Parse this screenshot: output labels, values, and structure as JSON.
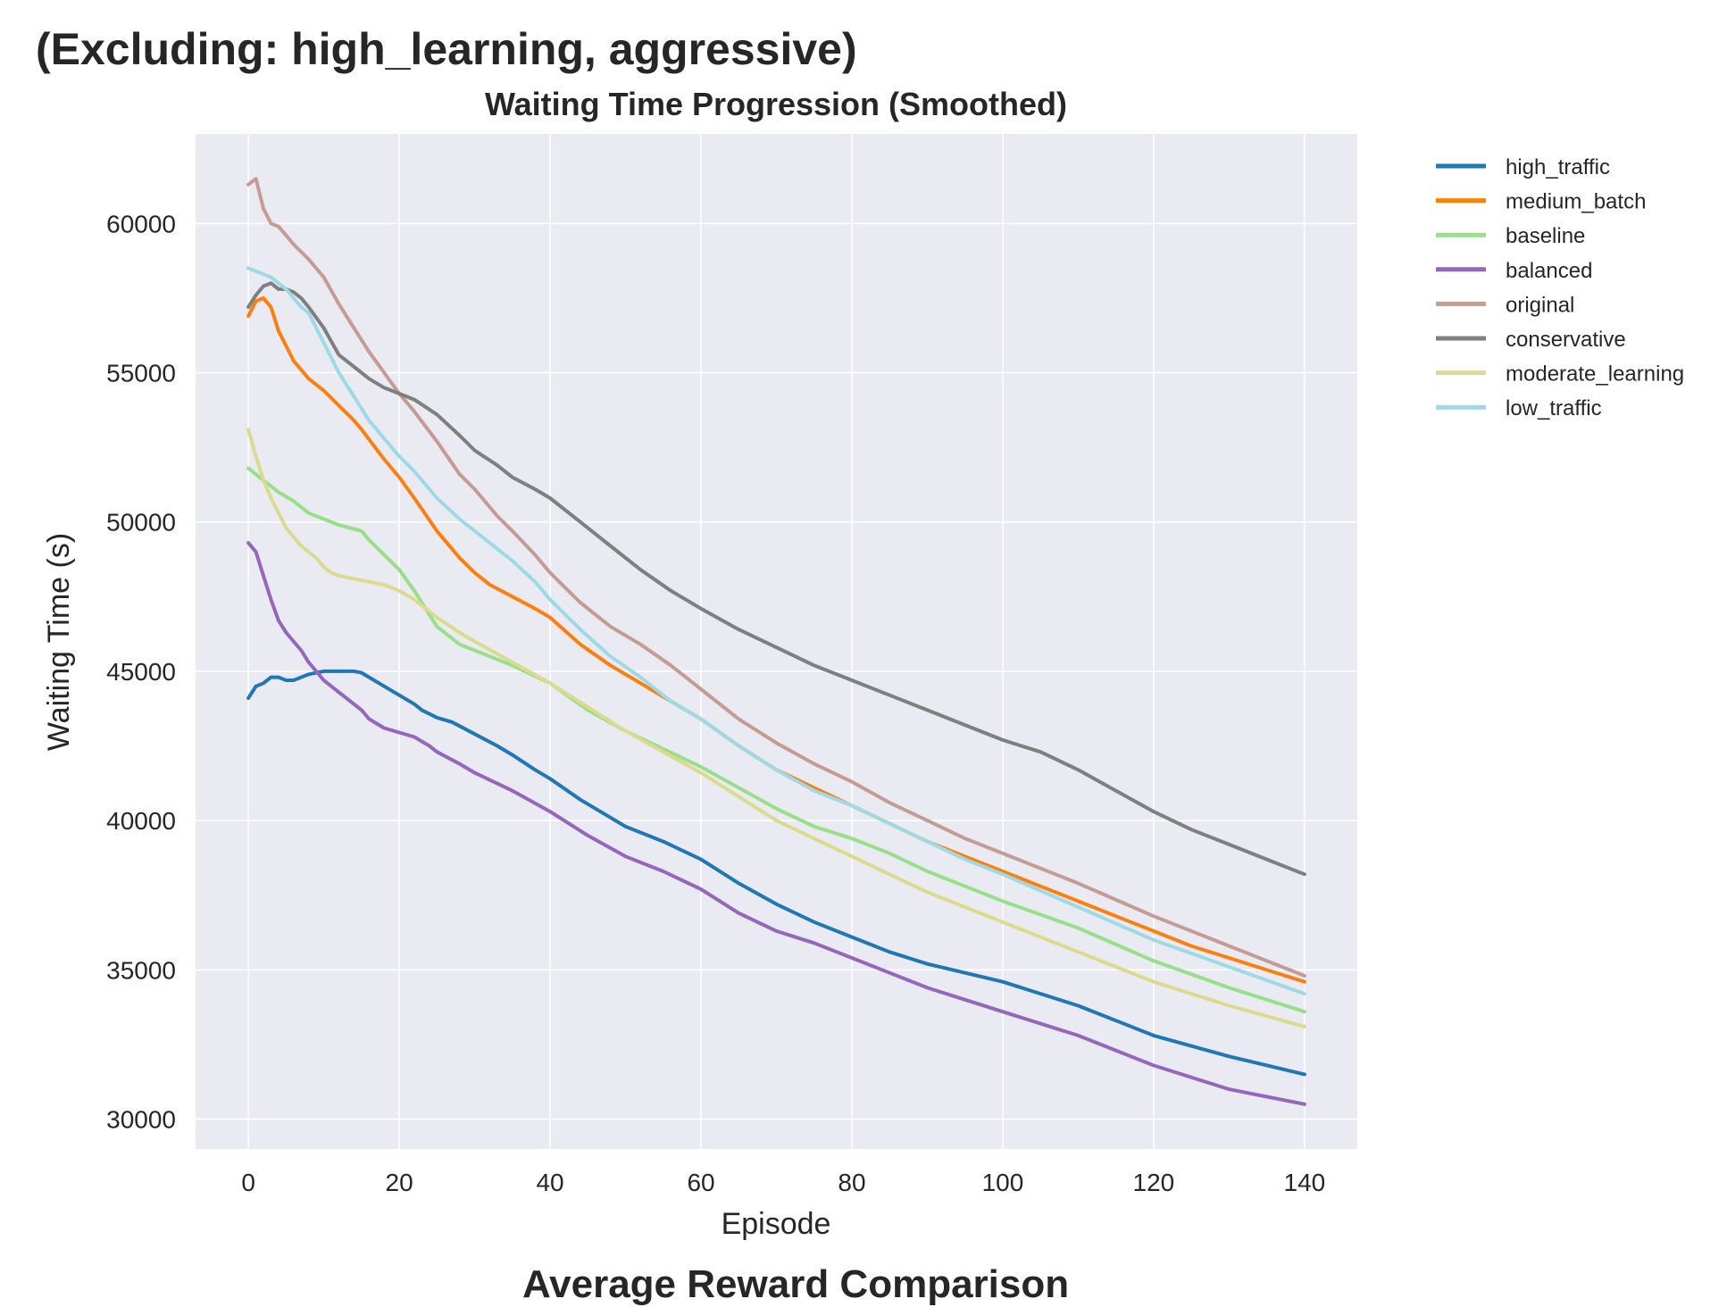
{
  "figure": {
    "suptitle": "(Excluding: high_learning, aggressive)",
    "cut_title": "Average Reward Comparison"
  },
  "chart_data": {
    "type": "line",
    "title": "Waiting Time Progression (Smoothed)",
    "xlabel": "Episode",
    "ylabel": "Waiting Time (s)",
    "xlim": [
      -7,
      147
    ],
    "ylim": [
      29000,
      63000
    ],
    "xticks": [
      0,
      20,
      40,
      60,
      80,
      100,
      120,
      140
    ],
    "yticks": [
      30000,
      35000,
      40000,
      45000,
      50000,
      55000,
      60000
    ],
    "grid": true,
    "legend_position": "outside-upper-right",
    "series": [
      {
        "name": "high_traffic",
        "color": "#1f77b4",
        "x": [
          0,
          1,
          2,
          3,
          4,
          5,
          6,
          7,
          8,
          9,
          10,
          12,
          14,
          15,
          16,
          18,
          20,
          22,
          23,
          25,
          27,
          30,
          33,
          35,
          38,
          40,
          44,
          50,
          55,
          60,
          65,
          70,
          75,
          80,
          85,
          90,
          95,
          100,
          105,
          110,
          115,
          120,
          130,
          140
        ],
        "y": [
          44100,
          44500,
          44600,
          44800,
          44800,
          44700,
          44700,
          44800,
          44900,
          44950,
          45000,
          45000,
          45000,
          44950,
          44800,
          44500,
          44200,
          43900,
          43700,
          43450,
          43300,
          42900,
          42500,
          42200,
          41700,
          41400,
          40700,
          39800,
          39300,
          38700,
          37900,
          37200,
          36600,
          36100,
          35600,
          35200,
          34900,
          34600,
          34200,
          33800,
          33300,
          32800,
          32100,
          31500
        ]
      },
      {
        "name": "medium_batch",
        "color": "#ff7f0e",
        "x": [
          0,
          1,
          2,
          3,
          4,
          5,
          6,
          8,
          10,
          12,
          14,
          15,
          18,
          20,
          22,
          25,
          28,
          30,
          32,
          35,
          38,
          40,
          44,
          48,
          52,
          56,
          60,
          65,
          70,
          75,
          80,
          85,
          90,
          95,
          100,
          105,
          110,
          115,
          120,
          125,
          130,
          135,
          140
        ],
        "y": [
          56900,
          57400,
          57500,
          57200,
          56400,
          55900,
          55400,
          54800,
          54400,
          53900,
          53400,
          53100,
          52100,
          51500,
          50800,
          49700,
          48800,
          48300,
          47900,
          47500,
          47100,
          46800,
          45900,
          45200,
          44600,
          44000,
          43400,
          42500,
          41700,
          41100,
          40500,
          39900,
          39300,
          38800,
          38300,
          37800,
          37300,
          36800,
          36300,
          35800,
          35400,
          35000,
          34600
        ]
      },
      {
        "name": "baseline",
        "color": "#98df8a",
        "x": [
          0,
          2,
          4,
          6,
          8,
          10,
          12,
          15,
          16,
          18,
          20,
          22,
          25,
          28,
          30,
          35,
          40,
          45,
          50,
          55,
          60,
          65,
          70,
          75,
          80,
          85,
          90,
          95,
          100,
          110,
          120,
          130,
          140
        ],
        "y": [
          51800,
          51400,
          51000,
          50700,
          50300,
          50100,
          49900,
          49700,
          49400,
          48900,
          48400,
          47700,
          46500,
          45900,
          45700,
          45200,
          44600,
          43700,
          43000,
          42400,
          41800,
          41100,
          40400,
          39800,
          39400,
          38900,
          38300,
          37800,
          37300,
          36400,
          35300,
          34400,
          33600
        ]
      },
      {
        "name": "balanced",
        "color": "#9467bd",
        "x": [
          0,
          1,
          2,
          3,
          4,
          5,
          6,
          7,
          8,
          10,
          12,
          14,
          15,
          16,
          18,
          20,
          22,
          24,
          25,
          28,
          30,
          35,
          40,
          45,
          50,
          55,
          60,
          65,
          70,
          75,
          80,
          85,
          90,
          95,
          100,
          110,
          120,
          130,
          140
        ],
        "y": [
          49300,
          49000,
          48200,
          47400,
          46700,
          46300,
          46000,
          45700,
          45300,
          44700,
          44300,
          43900,
          43700,
          43400,
          43100,
          42950,
          42800,
          42500,
          42300,
          41900,
          41600,
          41000,
          40300,
          39500,
          38800,
          38300,
          37700,
          36900,
          36300,
          35900,
          35400,
          34900,
          34400,
          34000,
          33600,
          32800,
          31800,
          31000,
          30500
        ]
      },
      {
        "name": "original",
        "color": "#c49c94",
        "x": [
          0,
          1,
          2,
          3,
          4,
          5,
          6,
          8,
          10,
          12,
          14,
          16,
          18,
          20,
          22,
          25,
          28,
          30,
          33,
          35,
          38,
          40,
          44,
          48,
          52,
          56,
          60,
          65,
          70,
          75,
          80,
          85,
          90,
          95,
          100,
          110,
          120,
          130,
          140
        ],
        "y": [
          61300,
          61500,
          60500,
          60000,
          59900,
          59600,
          59300,
          58800,
          58200,
          57300,
          56500,
          55700,
          55000,
          54300,
          53700,
          52700,
          51600,
          51100,
          50200,
          49700,
          48900,
          48300,
          47300,
          46500,
          45900,
          45200,
          44400,
          43400,
          42600,
          41900,
          41300,
          40600,
          40000,
          39400,
          38900,
          37900,
          36800,
          35800,
          34800
        ]
      },
      {
        "name": "conservative",
        "color": "#7f7f7f",
        "x": [
          0,
          1,
          2,
          3,
          4,
          5,
          6,
          7,
          8,
          10,
          12,
          14,
          16,
          18,
          20,
          22,
          25,
          28,
          30,
          33,
          35,
          38,
          40,
          44,
          48,
          52,
          56,
          60,
          65,
          70,
          75,
          80,
          85,
          90,
          95,
          100,
          105,
          110,
          115,
          120,
          125,
          130,
          135,
          140
        ],
        "y": [
          57200,
          57600,
          57900,
          58000,
          57800,
          57800,
          57700,
          57500,
          57200,
          56500,
          55600,
          55200,
          54800,
          54500,
          54300,
          54100,
          53600,
          52900,
          52400,
          51900,
          51500,
          51100,
          50800,
          50000,
          49200,
          48400,
          47700,
          47100,
          46400,
          45800,
          45200,
          44700,
          44200,
          43700,
          43200,
          42700,
          42300,
          41700,
          41000,
          40300,
          39700,
          39200,
          38700,
          38200
        ]
      },
      {
        "name": "moderate_learning",
        "color": "#dbdb8d",
        "x": [
          0,
          1,
          2,
          3,
          4,
          5,
          6,
          7,
          8,
          9,
          10,
          11,
          12,
          14,
          16,
          18,
          20,
          22,
          25,
          28,
          30,
          35,
          40,
          45,
          50,
          55,
          60,
          65,
          70,
          75,
          80,
          85,
          90,
          95,
          100,
          110,
          120,
          130,
          140
        ],
        "y": [
          53100,
          52200,
          51400,
          50800,
          50300,
          49800,
          49500,
          49200,
          49000,
          48800,
          48500,
          48300,
          48200,
          48100,
          48000,
          47900,
          47700,
          47400,
          46800,
          46300,
          46000,
          45300,
          44600,
          43800,
          43000,
          42300,
          41600,
          40800,
          40000,
          39400,
          38800,
          38200,
          37600,
          37100,
          36600,
          35600,
          34600,
          33800,
          33100
        ]
      },
      {
        "name": "low_traffic",
        "color": "#9edae5",
        "x": [
          0,
          1,
          2,
          3,
          4,
          5,
          6,
          7,
          8,
          10,
          12,
          14,
          16,
          18,
          20,
          22,
          25,
          28,
          30,
          33,
          35,
          38,
          40,
          44,
          48,
          52,
          56,
          60,
          65,
          70,
          75,
          80,
          85,
          90,
          95,
          100,
          110,
          120,
          130,
          140
        ],
        "y": [
          58500,
          58400,
          58300,
          58200,
          58000,
          57800,
          57500,
          57200,
          57000,
          56000,
          55000,
          54200,
          53400,
          52800,
          52200,
          51700,
          50800,
          50100,
          49700,
          49100,
          48700,
          48000,
          47400,
          46400,
          45500,
          44800,
          44000,
          43400,
          42500,
          41700,
          41000,
          40500,
          39900,
          39300,
          38700,
          38200,
          37100,
          36000,
          35100,
          34200
        ]
      }
    ]
  }
}
